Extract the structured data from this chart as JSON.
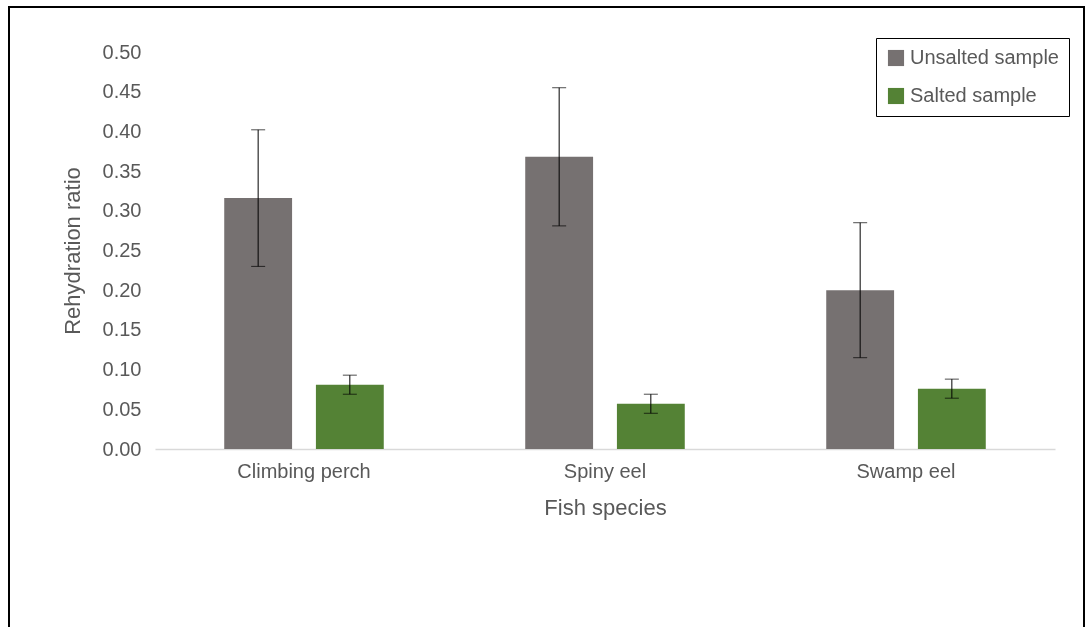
{
  "chart_data": {
    "type": "bar",
    "xlabel": "Fish species",
    "ylabel": "Rehydration ratio",
    "categories": [
      "Climbing perch",
      "Spiny eel",
      "Swamp eel"
    ],
    "series": [
      {
        "name": "Unsalted sample",
        "color": "#767171",
        "values": [
          0.316,
          0.368,
          0.2
        ],
        "errors": [
          0.086,
          0.087,
          0.085
        ]
      },
      {
        "name": "Salted sample",
        "color": "#548235",
        "values": [
          0.081,
          0.057,
          0.076
        ],
        "errors": [
          0.012,
          0.012,
          0.012
        ]
      }
    ],
    "ylim": [
      0,
      0.5
    ],
    "yticks": [
      {
        "value": 0,
        "label": "0.00"
      },
      0.05,
      {
        "value": 0.1,
        "label": "0.10"
      },
      0.15,
      {
        "value": 0.2,
        "label": "0.20"
      },
      0.25,
      {
        "value": 0.3,
        "label": "0.30"
      },
      0.35,
      {
        "value": 0.4,
        "label": "0.40"
      },
      0.45,
      {
        "value": 0.5,
        "label": "0.50"
      }
    ],
    "legend": "top right",
    "grid": false
  }
}
